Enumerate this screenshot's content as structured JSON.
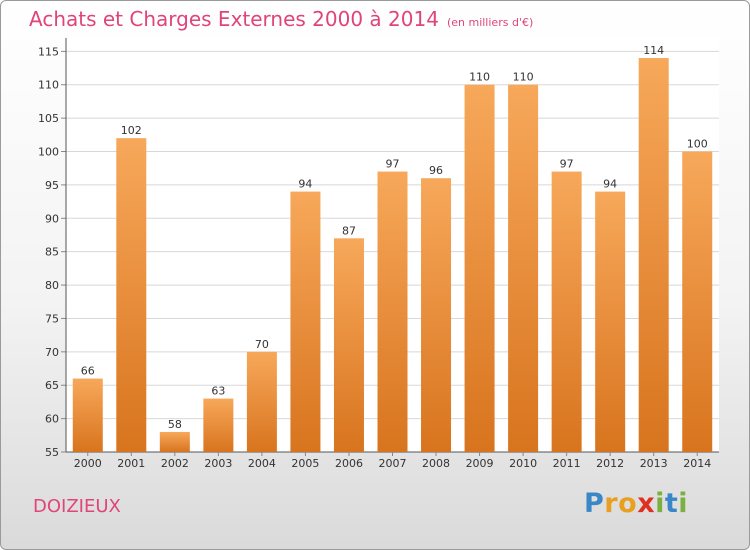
{
  "title": "Achats et Charges Externes 2000 à 2014",
  "subtitle": "(en milliers d'€)",
  "commune": "DOIZIEUX",
  "logo": {
    "letters": [
      {
        "char": "P",
        "color": "#3a87c8"
      },
      {
        "char": "r",
        "color": "#e8a020"
      },
      {
        "char": "o",
        "color": "#e8a020"
      },
      {
        "char": "x",
        "color": "#e03020"
      },
      {
        "char": "i",
        "color": "#7ab040"
      },
      {
        "char": "t",
        "color": "#3a87c8"
      },
      {
        "char": "i",
        "color": "#7ab040"
      }
    ]
  },
  "colors": {
    "title": "#e0447a",
    "bar_top": "#f7a85a",
    "bar_bottom": "#d8741e",
    "grid": "#d8d8d8"
  },
  "chart_data": {
    "type": "bar",
    "title": "Achats et Charges Externes 2000 à 2014",
    "subtitle": "(en milliers d'€)",
    "xlabel": "",
    "ylabel": "",
    "categories": [
      "2000",
      "2001",
      "2002",
      "2003",
      "2004",
      "2005",
      "2006",
      "2007",
      "2008",
      "2009",
      "2010",
      "2011",
      "2012",
      "2013",
      "2014"
    ],
    "values": [
      66,
      102,
      58,
      63,
      70,
      94,
      87,
      97,
      96,
      110,
      110,
      97,
      94,
      114,
      100
    ],
    "ylim": [
      55,
      117
    ],
    "yticks": [
      55,
      60,
      65,
      70,
      75,
      80,
      85,
      90,
      95,
      100,
      105,
      110,
      115
    ],
    "grid": true
  }
}
